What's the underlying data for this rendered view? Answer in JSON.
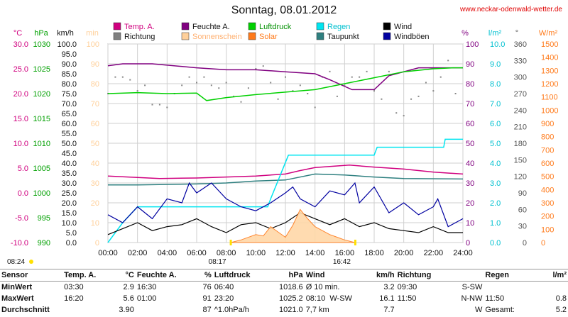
{
  "title": "Sonntag, 08.01.2012",
  "website": "www.neckar-odenwald-wetter.de",
  "axes": {
    "left_units": [
      "°C",
      "hPa",
      "km/h",
      "min"
    ],
    "right_units": [
      "%",
      "l/m²",
      "°",
      "W/m²"
    ],
    "x_ticks": [
      "00:00",
      "02:00",
      "04:00",
      "06:00",
      "08:00",
      "10:00",
      "12:00",
      "14:00",
      "16:00",
      "18:00",
      "20:00",
      "22:00",
      "24:00"
    ]
  },
  "sun": {
    "sunrise": "08:17",
    "sunset": "16:42",
    "first_light": "08:24"
  },
  "legend": [
    {
      "label": "Temp. A.",
      "color": "#d0007f"
    },
    {
      "label": "Feuchte A.",
      "color": "#800080"
    },
    {
      "label": "Luftdruck",
      "color": "#00d000"
    },
    {
      "label": "Regen",
      "color": "#00e5f0"
    },
    {
      "label": "Wind",
      "color": "#000000"
    },
    {
      "label": "Richtung",
      "color": "#808080"
    },
    {
      "label": "Sonnenschein",
      "color": "#ffd09a"
    },
    {
      "label": "Solar",
      "color": "#ff7a1a"
    },
    {
      "label": "Taupunkt",
      "color": "#2f8080"
    },
    {
      "label": "Windböen",
      "color": "#0000a0"
    }
  ],
  "chart_data": {
    "type": "line",
    "x_unit": "hours",
    "xlim": [
      0,
      24
    ],
    "y_axes": {
      "temp": {
        "unit": "°C",
        "range": [
          -10,
          30
        ],
        "color": "#d0007f"
      },
      "pressure": {
        "unit": "hPa",
        "range": [
          990,
          1030
        ],
        "color": "#00b000"
      },
      "wind": {
        "unit": "km/h",
        "range": [
          0,
          100
        ],
        "color": "#000000"
      },
      "sunshine": {
        "unit": "min",
        "range": [
          0,
          100
        ],
        "color": "#ffd09a"
      },
      "humidity": {
        "unit": "%",
        "range": [
          0,
          100
        ],
        "color": "#800080"
      },
      "rain": {
        "unit": "l/m²",
        "range": [
          0,
          10
        ],
        "color": "#00e5f0"
      },
      "direction": {
        "unit": "°",
        "range": [
          0,
          360
        ],
        "color": "#555555"
      },
      "solar": {
        "unit": "W/m²",
        "range": [
          0,
          1500
        ],
        "color": "#ff7a1a"
      }
    },
    "series": [
      {
        "name": "Temp. A.",
        "axis": "temp",
        "x": [
          0,
          3.5,
          6,
          8,
          10,
          12,
          13,
          14,
          16.33,
          18,
          20,
          22,
          24
        ],
        "y": [
          3.4,
          2.9,
          3.0,
          3.2,
          3.4,
          3.8,
          4.5,
          5.1,
          5.6,
          5.2,
          4.8,
          4.2,
          3.8
        ]
      },
      {
        "name": "Feuchte A.",
        "axis": "humidity",
        "x": [
          0,
          1,
          3,
          6,
          8,
          10,
          12,
          14,
          15,
          16.5,
          18,
          19,
          21,
          22,
          24
        ],
        "y": [
          89,
          90,
          90,
          88,
          87,
          87,
          86,
          85,
          82,
          77,
          77,
          84,
          88,
          88,
          88
        ]
      },
      {
        "name": "Luftdruck",
        "axis": "pressure",
        "x": [
          0,
          2,
          4,
          6,
          6.67,
          8,
          10,
          12,
          14,
          16,
          18,
          20,
          22,
          23.33,
          24
        ],
        "y": [
          1020.0,
          1020.2,
          1020.0,
          1020.1,
          1018.6,
          1019.2,
          1019.8,
          1020.3,
          1020.8,
          1022.0,
          1023.2,
          1024.4,
          1025.0,
          1025.2,
          1025.2
        ],
        "color": "#00d000"
      },
      {
        "name": "Taupunkt",
        "axis": "temp",
        "x": [
          0,
          2,
          6,
          8,
          10,
          12,
          14,
          16,
          18,
          20,
          24
        ],
        "y": [
          1.6,
          1.6,
          1.8,
          2.0,
          2.4,
          2.6,
          3.8,
          3.6,
          3.2,
          2.9,
          2.8
        ]
      },
      {
        "name": "Regen",
        "axis": "rain",
        "x": [
          0,
          1,
          2,
          6,
          10.8,
          11,
          12.2,
          12.3,
          18,
          18.2,
          22.7,
          22.8,
          24
        ],
        "y": [
          0,
          1.0,
          1.8,
          1.8,
          1.8,
          2.2,
          4.4,
          4.4,
          4.4,
          4.8,
          4.8,
          5.2,
          5.2
        ]
      },
      {
        "name": "Wind",
        "axis": "wind",
        "x": [
          0,
          1,
          2,
          3,
          4,
          5,
          6,
          7,
          8,
          9,
          10,
          11,
          12,
          13,
          14,
          15,
          16,
          17,
          18,
          19,
          20,
          21,
          22,
          23,
          24
        ],
        "y": [
          4,
          7,
          10,
          6,
          8,
          9,
          12,
          8,
          5,
          9,
          10,
          7,
          10,
          15,
          12,
          9,
          12,
          8,
          10,
          7,
          6,
          5,
          8,
          5,
          5
        ]
      },
      {
        "name": "Windböen",
        "axis": "wind",
        "x": [
          0,
          1,
          2,
          3,
          4,
          5,
          5.5,
          6,
          7,
          8,
          9,
          10,
          11,
          12,
          12.5,
          13,
          14,
          15,
          16,
          16.7,
          17,
          18,
          19,
          20,
          21,
          22,
          22.3,
          23,
          24
        ],
        "y": [
          14,
          10,
          18,
          12,
          22,
          20,
          30,
          25,
          30,
          22,
          18,
          16,
          20,
          25,
          28,
          22,
          18,
          26,
          24,
          30,
          20,
          28,
          15,
          20,
          14,
          18,
          22,
          8,
          12
        ]
      },
      {
        "name": "Solar",
        "axis": "solar",
        "x": [
          8.3,
          9,
          10,
          10.5,
          11,
          11.5,
          12,
          12.5,
          13,
          13.5,
          14,
          14.5,
          15,
          15.5,
          16,
          16.7
        ],
        "y": [
          0,
          20,
          60,
          50,
          120,
          80,
          40,
          130,
          250,
          180,
          120,
          90,
          60,
          40,
          20,
          0
        ]
      }
    ],
    "scatter_series": [
      {
        "name": "Richtung",
        "axis": "direction",
        "x": [
          0,
          0.5,
          1,
          1.5,
          2,
          2.5,
          3,
          3.5,
          4,
          4.5,
          5,
          5.5,
          6,
          6.5,
          7,
          7.5,
          8,
          8.5,
          9,
          9.5,
          10,
          10.5,
          11,
          11.5,
          12,
          12.5,
          13,
          13.5,
          14,
          14.5,
          15,
          15.5,
          16,
          16.5,
          17,
          17.5,
          18,
          18.5,
          19,
          19.5,
          20,
          20.5,
          21,
          21.5,
          22,
          22.5,
          23,
          23.5
        ],
        "y": [
          270,
          300,
          300,
          295,
          275,
          285,
          250,
          250,
          245,
          270,
          285,
          300,
          290,
          300,
          285,
          280,
          290,
          265,
          255,
          280,
          315,
          320,
          290,
          260,
          300,
          275,
          285,
          270,
          245,
          300,
          310,
          265,
          285,
          300,
          300,
          310,
          275,
          260,
          310,
          235,
          230,
          260,
          265,
          290,
          275,
          300,
          330,
          270
        ]
      }
    ]
  },
  "stats": {
    "headers": {
      "sensor": "Sensor",
      "temp": "Temp. A.",
      "temp_unit": "°C",
      "hum": "Feuchte A.",
      "hum_unit": "%",
      "press": "Luftdruck",
      "press_unit": "hPa",
      "wind": "Wind",
      "wind_unit": "km/h",
      "dir": "Richtung",
      "rain": "Regen",
      "rain_unit": "l/m²"
    },
    "rows": [
      {
        "label": "MinWert",
        "temp_t": "03:30",
        "temp_v": "2.9",
        "hum_t": "16:30",
        "hum_v": "76",
        "press_t": "06:40",
        "press_v": "1018.6",
        "wind_t": "Ø 10 min.",
        "wind_v": "3.2",
        "dir_t": "09:30",
        "dir_v": "S-SW",
        "rain_t": "",
        "rain_v": ""
      },
      {
        "label": "MaxWert",
        "temp_t": "16:20",
        "temp_v": "5.6",
        "hum_t": "01:00",
        "hum_v": "91",
        "press_t": "23:20",
        "press_v": "1025.2",
        "wind_t": "08:10",
        "wind_d": "W-SW",
        "wind_v": "16.1",
        "dir_t": "11:50",
        "dir_v": "N-NW",
        "rain_t": "11:50",
        "rain_v": "0.8"
      },
      {
        "label": "Durchschnitt",
        "temp_t": "",
        "temp_v": "3.90",
        "hum_t": "",
        "hum_v": "87",
        "press_t": "^1.0hPa/h",
        "press_v": "1021.0",
        "wind_t": "7,7 km",
        "wind_v": "7.7",
        "dir_t": "",
        "dir_v": "W",
        "rain_t": "Gesamt:",
        "rain_v": "5.2"
      }
    ]
  }
}
